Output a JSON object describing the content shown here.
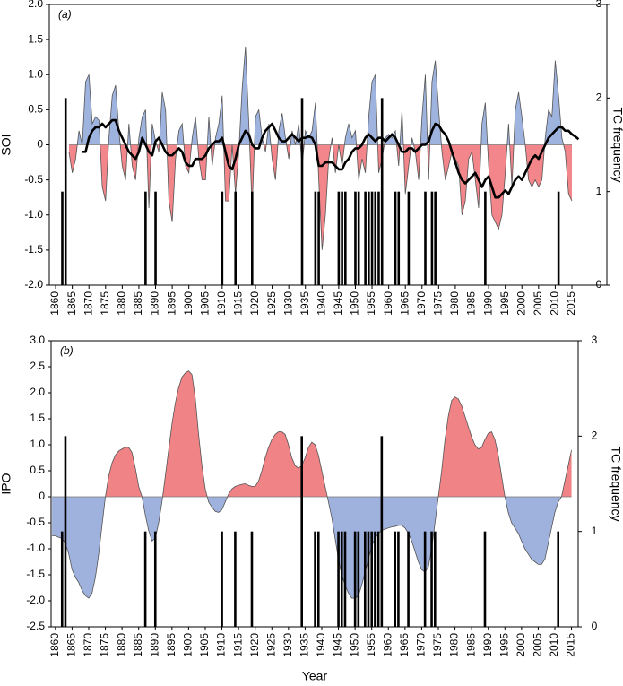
{
  "chart_data": [
    {
      "type": "area",
      "panel_label": "(a)",
      "ylabel": "SOI",
      "y2label": "TC frequency",
      "xlim": [
        1858.1,
        2025.5
      ],
      "xticks": [
        1860,
        1865,
        1870,
        1875,
        1880,
        1885,
        1890,
        1895,
        1900,
        1905,
        1910,
        1915,
        1920,
        1925,
        1930,
        1935,
        1940,
        1945,
        1950,
        1955,
        1960,
        1965,
        1970,
        1975,
        1980,
        1985,
        1990,
        1995,
        2000,
        2005,
        2010,
        2015
      ],
      "ylim": [
        -2,
        2
      ],
      "yticks": [
        {
          "value": 2,
          "label": "2.0"
        },
        1.5,
        {
          "value": 1,
          "label": "1.0"
        },
        0.5,
        0,
        -0.5,
        {
          "value": -1,
          "label": "-1.0"
        },
        -1.5,
        {
          "value": -2,
          "label": "-2.0"
        }
      ],
      "y2lim": [
        0,
        3
      ],
      "y2ticks": [
        0,
        1,
        2,
        3
      ],
      "x": [
        1864,
        1865,
        1866,
        1867,
        1868,
        1869,
        1870,
        1871,
        1872,
        1873,
        1874,
        1875,
        1876,
        1877,
        1878,
        1879,
        1880,
        1881,
        1882,
        1883,
        1884,
        1885,
        1886,
        1887,
        1888,
        1889,
        1890,
        1891,
        1892,
        1893,
        1894,
        1895,
        1896,
        1897,
        1898,
        1899,
        1900,
        1901,
        1902,
        1903,
        1904,
        1905,
        1906,
        1907,
        1908,
        1909,
        1910,
        1911,
        1912,
        1913,
        1914,
        1915,
        1916,
        1917,
        1918,
        1919,
        1920,
        1921,
        1922,
        1923,
        1924,
        1925,
        1926,
        1927,
        1928,
        1929,
        1930,
        1931,
        1932,
        1933,
        1934,
        1935,
        1936,
        1937,
        1938,
        1939,
        1940,
        1941,
        1942,
        1943,
        1944,
        1945,
        1946,
        1947,
        1948,
        1949,
        1950,
        1951,
        1952,
        1953,
        1954,
        1955,
        1956,
        1957,
        1958,
        1959,
        1960,
        1961,
        1962,
        1963,
        1964,
        1965,
        1966,
        1967,
        1968,
        1969,
        1970,
        1971,
        1972,
        1973,
        1974,
        1975,
        1976,
        1977,
        1978,
        1979,
        1980,
        1981,
        1982,
        1983,
        1984,
        1985,
        1986,
        1987,
        1988,
        1989,
        1990,
        1991,
        1992,
        1993,
        1994,
        1995,
        1996,
        1997,
        1998,
        1999,
        2000,
        2001,
        2002,
        2003,
        2004,
        2005,
        2006,
        2007,
        2008,
        2009,
        2010,
        2011,
        2012,
        2013,
        2014,
        2015,
        2016,
        2017
      ],
      "series": [
        {
          "type": "area",
          "positive_color": "#9fb3df",
          "negative_color": "#f2868a",
          "line_color": "#555555",
          "values": [
            -0.1,
            -0.4,
            -0.2,
            0.2,
            0,
            0.9,
            1.0,
            0.3,
            0.4,
            0.35,
            -0.6,
            -0.8,
            0.1,
            0.7,
            0.85,
            0.2,
            -0.3,
            -0.5,
            0.3,
            -0.3,
            -0.5,
            0.1,
            0.4,
            0.5,
            -0.9,
            0.3,
            0.05,
            -0.1,
            0.75,
            0.5,
            -0.8,
            -1.1,
            -0.2,
            0.2,
            0.3,
            -0.3,
            -0.4,
            0.1,
            0.4,
            -0.2,
            -0.5,
            -0.5,
            0.4,
            -0.3,
            0.1,
            0.3,
            0.7,
            -0.8,
            -0.8,
            0.0,
            -0.7,
            -0.1,
            0.8,
            1.4,
            0.3,
            -0.9,
            0.4,
            0.5,
            0.1,
            -0.1,
            0.3,
            -0.2,
            -0.5,
            0.2,
            0.45,
            0.1,
            -0.2,
            0.2,
            0.0,
            0.3,
            -0.3,
            0.2,
            0.1,
            0.2,
            0.6,
            -0.5,
            -1.5,
            -1.0,
            -0.2,
            0.1,
            -0.4,
            0.0,
            -0.3,
            0.1,
            0.3,
            0.1,
            0.2,
            -0.5,
            -0.2,
            -0.4,
            0.4,
            0.9,
            1.0,
            -0.4,
            -0.2,
            0.1,
            0.15,
            0.1,
            0.2,
            -0.3,
            0.5,
            -0.7,
            -0.3,
            0.1,
            -0.1,
            -0.5,
            0.4,
            1.0,
            -0.5,
            0.9,
            1.2,
            0.5,
            -0.1,
            -0.5,
            -0.3,
            -0.1,
            -0.2,
            -0.3,
            -1.0,
            -0.8,
            -0.2,
            -0.1,
            -0.5,
            -0.9,
            0.3,
            0.6,
            -0.3,
            -1.0,
            -1.1,
            -1.2,
            -1.0,
            -0.4,
            0.3,
            -0.6,
            0.5,
            0.75,
            0.4,
            0.0,
            -0.5,
            -0.6,
            -0.5,
            -0.6,
            -0.5,
            0.1,
            0.5,
            0.4,
            1.2,
            0.7,
            0.1,
            -0.1,
            -0.7,
            -0.8,
            null,
            null
          ]
        },
        {
          "type": "line",
          "color": "#000000",
          "values": [
            null,
            null,
            null,
            null,
            -0.1,
            -0.1,
            0.1,
            0.2,
            0.25,
            0.25,
            0.3,
            0.25,
            0.3,
            0.35,
            0.35,
            0.2,
            0.1,
            0.0,
            -0.1,
            -0.15,
            -0.2,
            -0.1,
            0.1,
            0.0,
            -0.1,
            -0.15,
            0.05,
            0.1,
            0.0,
            -0.1,
            -0.15,
            -0.15,
            -0.1,
            -0.05,
            -0.1,
            -0.25,
            -0.3,
            -0.3,
            -0.2,
            -0.2,
            -0.2,
            -0.15,
            -0.05,
            0.0,
            0.05,
            0.05,
            0.1,
            -0.1,
            -0.3,
            -0.35,
            -0.2,
            0.0,
            0.1,
            0.2,
            0.15,
            0.0,
            -0.05,
            -0.05,
            0.1,
            0.2,
            0.25,
            0.3,
            0.2,
            0.1,
            0.05,
            0.05,
            0.1,
            0.15,
            0.1,
            0.05,
            0.1,
            0.1,
            0.12,
            0.1,
            0.0,
            -0.3,
            -0.3,
            -0.25,
            -0.25,
            -0.25,
            -0.3,
            -0.35,
            -0.35,
            -0.25,
            -0.2,
            -0.1,
            -0.05,
            -0.05,
            0.0,
            0.1,
            0.15,
            0.1,
            0.05,
            0.1,
            0.1,
            0.05,
            0.1,
            0.15,
            0.1,
            0.0,
            -0.1,
            -0.1,
            -0.05,
            -0.05,
            -0.1,
            -0.05,
            0.0,
            0.0,
            0.05,
            0.2,
            0.3,
            0.28,
            0.2,
            0.15,
            0.05,
            -0.1,
            -0.25,
            -0.4,
            -0.5,
            -0.55,
            -0.5,
            -0.45,
            -0.4,
            -0.5,
            -0.6,
            -0.5,
            -0.45,
            -0.6,
            -0.75,
            -0.75,
            -0.7,
            -0.65,
            -0.7,
            -0.6,
            -0.5,
            -0.45,
            -0.5,
            -0.4,
            -0.3,
            -0.2,
            -0.15,
            -0.2,
            -0.1,
            0.0,
            0.1,
            0.15,
            0.2,
            0.25,
            0.25,
            0.2,
            0.2,
            0.15,
            0.12,
            0.08
          ]
        },
        {
          "type": "bar",
          "axis": "y2",
          "color": "#000000",
          "x": [
            1862,
            1863,
            1887,
            1890,
            1910,
            1914,
            1919,
            1934,
            1938,
            1939,
            1945,
            1946,
            1947,
            1950,
            1951,
            1953,
            1954,
            1955,
            1956,
            1957,
            1958,
            1962,
            1963,
            1966,
            1971,
            1973,
            1974,
            1989,
            2011
          ],
          "values": [
            1,
            2,
            1,
            1,
            1,
            1,
            1,
            2,
            1,
            1,
            1,
            1,
            1,
            1,
            1,
            1,
            1,
            1,
            1,
            1,
            2,
            1,
            1,
            1,
            1,
            1,
            1,
            1,
            1
          ]
        }
      ]
    },
    {
      "type": "area",
      "panel_label": "(b)",
      "ylabel": "IPO",
      "y2label": "TC frequency",
      "xlabel": "Year",
      "xlim": [
        1858.7,
        2017
      ],
      "xticks": [
        1860,
        1865,
        1870,
        1875,
        1880,
        1885,
        1890,
        1895,
        1900,
        1905,
        1910,
        1915,
        1920,
        1925,
        1930,
        1935,
        1940,
        1945,
        1950,
        1955,
        1960,
        1965,
        1970,
        1975,
        1980,
        1985,
        1990,
        1995,
        2000,
        2005,
        2010,
        2015
      ],
      "ylim": [
        -2.5,
        3
      ],
      "yticks": [
        {
          "value": 3,
          "label": "3.0"
        },
        2.5,
        {
          "value": 2,
          "label": "2.0"
        },
        1.5,
        {
          "value": 1,
          "label": "1.0"
        },
        0.5,
        0,
        -0.5,
        {
          "value": -1,
          "label": "-1.0"
        },
        -1.5,
        {
          "value": -2,
          "label": "-2.0"
        },
        -2.5
      ],
      "y2lim": [
        0,
        3
      ],
      "y2ticks": [
        0,
        1,
        2,
        3
      ],
      "x": [
        1859,
        1860,
        1861,
        1862,
        1863,
        1864,
        1865,
        1866,
        1867,
        1868,
        1869,
        1870,
        1871,
        1872,
        1873,
        1874,
        1875,
        1876,
        1877,
        1878,
        1879,
        1880,
        1881,
        1882,
        1883,
        1884,
        1885,
        1886,
        1887,
        1888,
        1889,
        1890,
        1891,
        1892,
        1893,
        1894,
        1895,
        1896,
        1897,
        1898,
        1899,
        1900,
        1901,
        1902,
        1903,
        1904,
        1905,
        1906,
        1907,
        1908,
        1909,
        1910,
        1911,
        1912,
        1913,
        1914,
        1915,
        1916,
        1917,
        1918,
        1919,
        1920,
        1921,
        1922,
        1923,
        1924,
        1925,
        1926,
        1927,
        1928,
        1929,
        1930,
        1931,
        1932,
        1933,
        1934,
        1935,
        1936,
        1937,
        1938,
        1939,
        1940,
        1941,
        1942,
        1943,
        1944,
        1945,
        1946,
        1947,
        1948,
        1949,
        1950,
        1951,
        1952,
        1953,
        1954,
        1955,
        1956,
        1957,
        1958,
        1959,
        1960,
        1961,
        1962,
        1963,
        1964,
        1965,
        1966,
        1967,
        1968,
        1969,
        1970,
        1971,
        1972,
        1973,
        1974,
        1975,
        1976,
        1977,
        1978,
        1979,
        1980,
        1981,
        1982,
        1983,
        1984,
        1985,
        1986,
        1987,
        1988,
        1989,
        1990,
        1991,
        1992,
        1993,
        1994,
        1995,
        1996,
        1997,
        1998,
        1999,
        2000,
        2001,
        2002,
        2003,
        2004,
        2005,
        2006,
        2007,
        2008,
        2009,
        2010,
        2011,
        2012,
        2013,
        2014,
        2015
      ],
      "series": [
        {
          "type": "area",
          "positive_color": "#f08386",
          "negative_color": "#9fb1dd",
          "line_color": "#555555",
          "values": [
            -0.75,
            -0.75,
            -0.78,
            -0.8,
            -0.9,
            -1.1,
            -1.4,
            -1.55,
            -1.65,
            -1.8,
            -1.9,
            -1.95,
            -1.85,
            -1.55,
            -1.1,
            -0.55,
            0.0,
            0.4,
            0.65,
            0.8,
            0.88,
            0.92,
            0.95,
            0.95,
            0.85,
            0.55,
            0.2,
            0.0,
            -0.35,
            -0.65,
            -0.85,
            -0.8,
            -0.5,
            -0.1,
            0.4,
            0.9,
            1.4,
            1.8,
            2.1,
            2.3,
            2.38,
            2.42,
            2.35,
            1.9,
            1.2,
            0.6,
            0.15,
            -0.1,
            -0.2,
            -0.28,
            -0.3,
            -0.25,
            -0.1,
            0.05,
            0.15,
            0.2,
            0.22,
            0.24,
            0.25,
            0.22,
            0.2,
            0.2,
            0.3,
            0.5,
            0.75,
            0.95,
            1.1,
            1.2,
            1.25,
            1.25,
            1.2,
            1.0,
            0.75,
            0.6,
            0.55,
            0.6,
            0.75,
            0.95,
            1.05,
            1.0,
            0.8,
            0.5,
            0.2,
            -0.1,
            -0.4,
            -0.8,
            -1.2,
            -1.5,
            -1.7,
            -1.85,
            -1.95,
            -1.95,
            -1.9,
            -1.7,
            -1.45,
            -1.2,
            -0.95,
            -0.8,
            -0.7,
            -0.65,
            -0.62,
            -0.6,
            -0.58,
            -0.57,
            -0.55,
            -0.55,
            -0.6,
            -0.7,
            -0.85,
            -1.05,
            -1.25,
            -1.4,
            -1.45,
            -1.35,
            -1.0,
            -0.5,
            0.0,
            0.5,
            1.1,
            1.55,
            1.85,
            1.92,
            1.88,
            1.75,
            1.55,
            1.35,
            1.15,
            1.0,
            0.92,
            0.95,
            1.1,
            1.22,
            1.25,
            1.1,
            0.8,
            0.4,
            0.0,
            -0.3,
            -0.5,
            -0.6,
            -0.7,
            -0.85,
            -1.0,
            -1.1,
            -1.2,
            -1.25,
            -1.3,
            -1.3,
            -1.2,
            -0.9,
            -0.6,
            -0.3,
            -0.1,
            0.0,
            0.3,
            0.6,
            0.9
          ]
        },
        {
          "type": "bar",
          "axis": "y2",
          "color": "#000000",
          "x": [
            1862,
            1863,
            1887,
            1890,
            1910,
            1914,
            1919,
            1934,
            1938,
            1939,
            1945,
            1946,
            1947,
            1950,
            1951,
            1953,
            1954,
            1955,
            1956,
            1957,
            1958,
            1962,
            1963,
            1966,
            1971,
            1973,
            1974,
            1989,
            2011
          ],
          "values": [
            1,
            2,
            1,
            1,
            1,
            1,
            1,
            2,
            1,
            1,
            1,
            1,
            1,
            1,
            1,
            1,
            1,
            1,
            1,
            1,
            2,
            1,
            1,
            1,
            1,
            1,
            1,
            1,
            1
          ]
        }
      ]
    }
  ]
}
